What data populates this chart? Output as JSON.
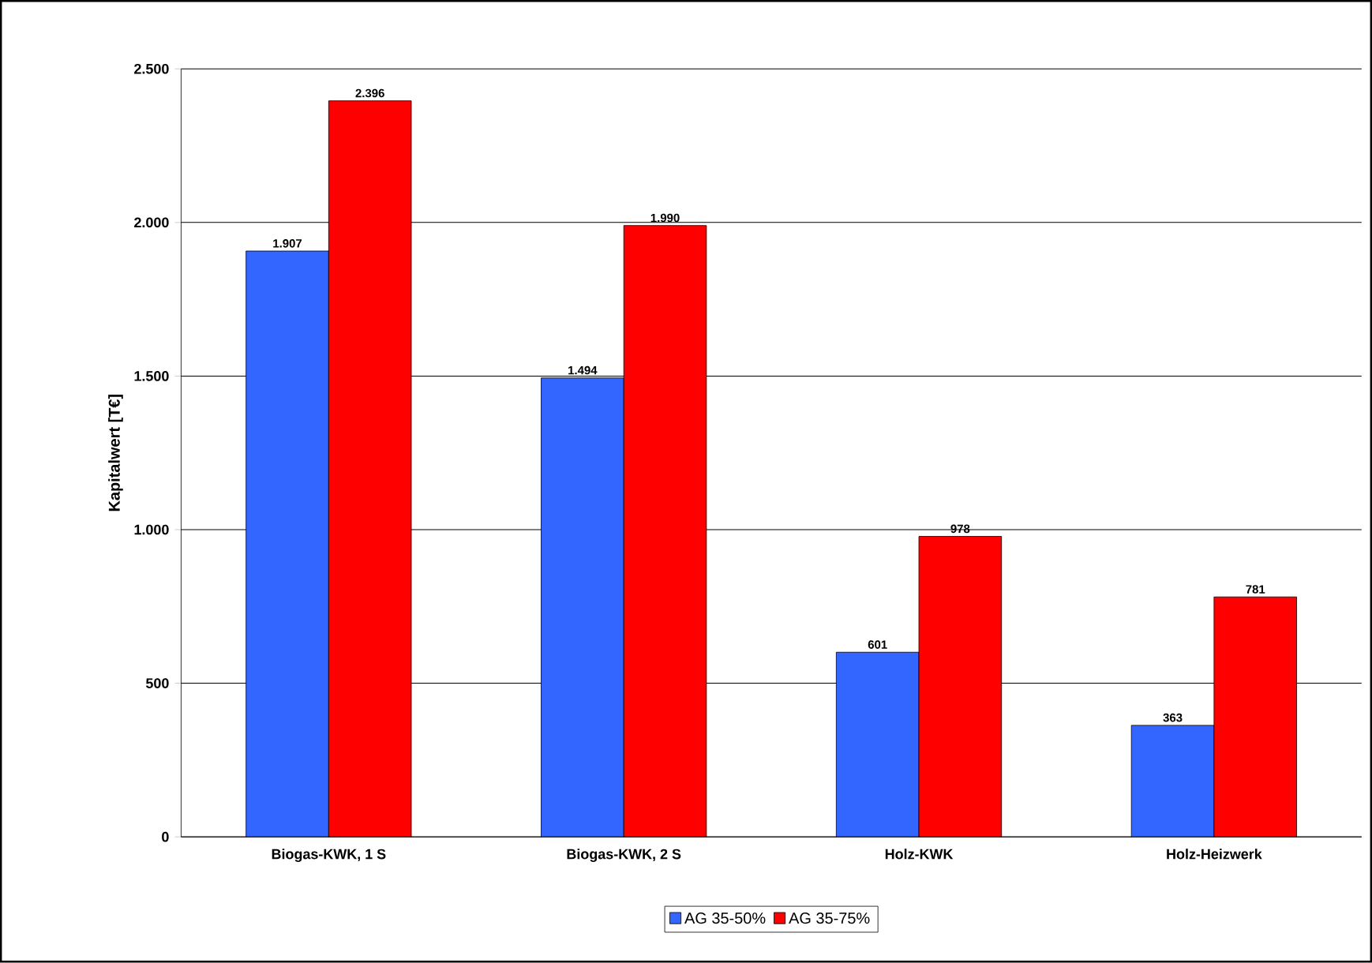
{
  "chart_data": {
    "type": "bar",
    "ylabel": "Kapitalwert [T€]",
    "categories": [
      "Biogas-KWK, 1 S",
      "Biogas-KWK, 2 S",
      "Holz-KWK",
      "Holz-Heizwerk"
    ],
    "series": [
      {
        "name": "AG 35-50%",
        "color": "#3366ff",
        "values": [
          1907,
          1494,
          601,
          363
        ],
        "value_labels": [
          "1.907",
          "1.494",
          "601",
          "363"
        ]
      },
      {
        "name": "AG 35-75%",
        "color": "#ff0000",
        "values": [
          2396,
          1990,
          978,
          781
        ],
        "value_labels": [
          "2.396",
          "1.990",
          "978",
          "781"
        ]
      }
    ],
    "ylim": [
      0,
      2500
    ],
    "yticks": [
      0,
      500,
      {
        "value": 1000,
        "label": "1.000"
      },
      {
        "value": 1500,
        "label": "1.500"
      },
      {
        "value": 2000,
        "label": "2.000"
      },
      {
        "value": 2500,
        "label": "2.500"
      }
    ],
    "grid": "y",
    "legend": "bottom"
  }
}
